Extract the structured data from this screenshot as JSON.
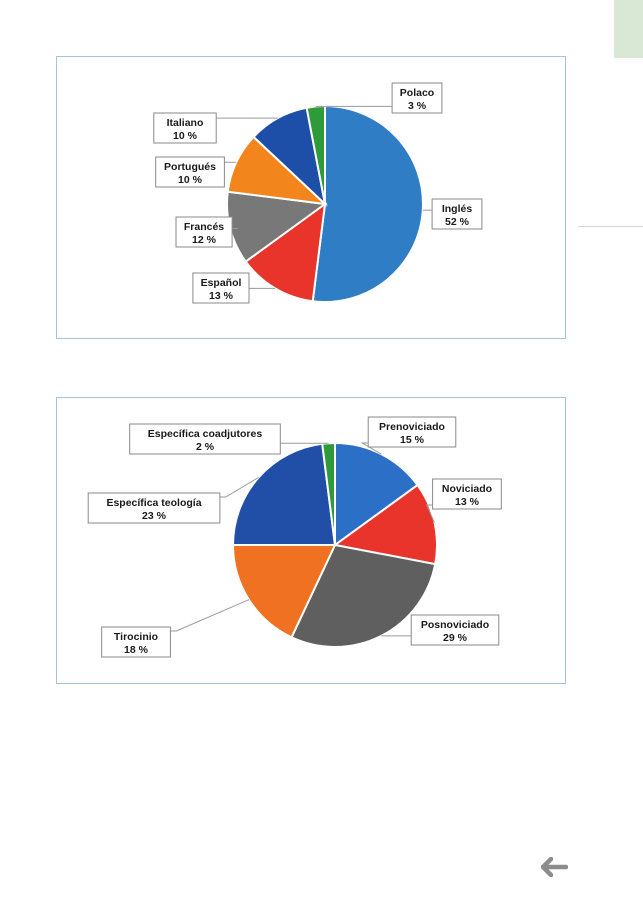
{
  "colors": {
    "page_bg": "#ffffff",
    "corner_tab": "#d9e8d4",
    "frame_border": "#a9c3d8",
    "arrow": "#8c8c8c"
  },
  "navigation": {
    "back_icon": "arrow-left-icon"
  },
  "chart_data": [
    {
      "type": "pie",
      "labels": [
        "Inglés",
        "Español",
        "Francés",
        "Portugués",
        "Italiano",
        "Polaco"
      ],
      "values": [
        52,
        13,
        12,
        10,
        10,
        3
      ],
      "display_values": [
        "52 %",
        "13 %",
        "12 %",
        "10 %",
        "10 %",
        "3 %"
      ],
      "colors": [
        "#2f7dc4",
        "#e8342a",
        "#787878",
        "#f2861d",
        "#1d4fa8",
        "#2f9a3a"
      ],
      "start_angle_deg": 0,
      "direction": "clockwise",
      "legend": "none"
    },
    {
      "type": "pie",
      "labels": [
        "Prenoviciado",
        "Noviciado",
        "Posnoviciado",
        "Tirocinio",
        "Específica teología",
        "Específica coadjutores"
      ],
      "values": [
        15,
        13,
        29,
        18,
        23,
        2
      ],
      "display_values": [
        "15 %",
        "13 %",
        "29 %",
        "18 %",
        "23 %",
        "2 %"
      ],
      "colors": [
        "#2c6fc7",
        "#e8342a",
        "#5f5f5f",
        "#f07122",
        "#214fa8",
        "#2f9a3a"
      ],
      "start_angle_deg": 0,
      "direction": "clockwise",
      "legend": "none"
    }
  ]
}
